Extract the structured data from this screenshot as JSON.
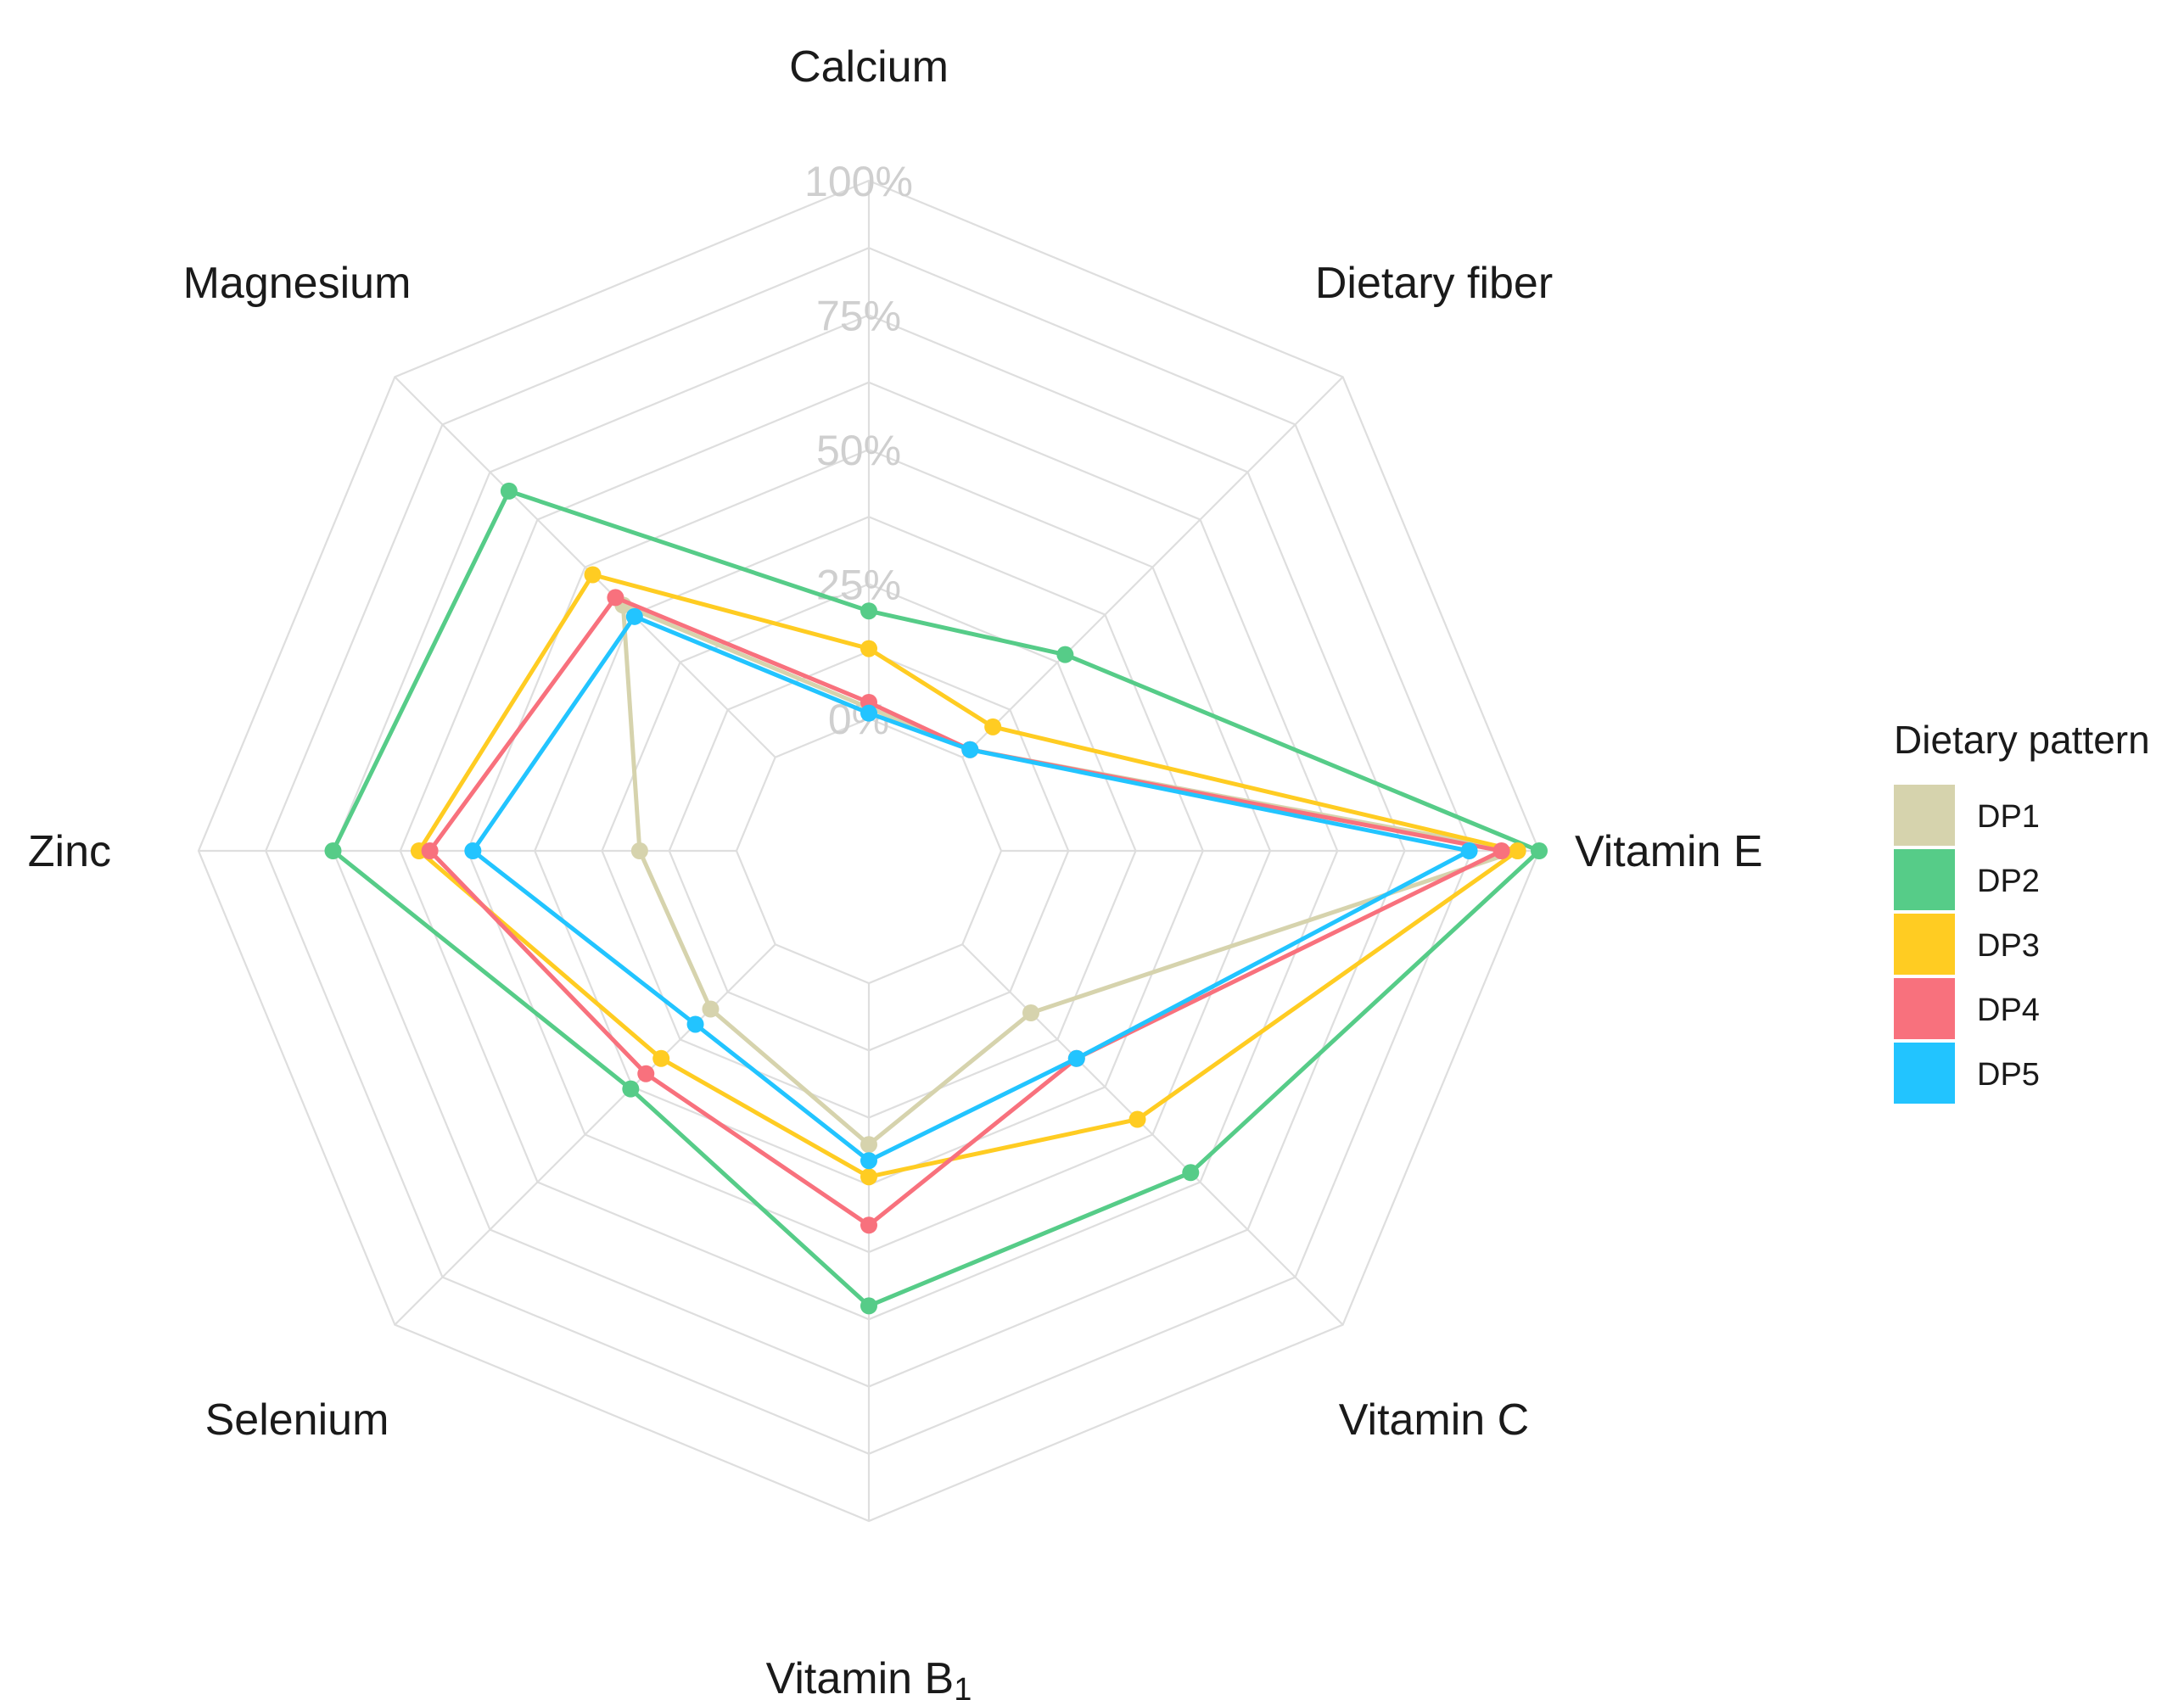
{
  "chart_data": {
    "type": "radar",
    "axes": [
      "Calcium",
      "Dietary fiber",
      "Vitamin E",
      "Vitamin C",
      "Vitamin B",
      "Selenium",
      "Zinc",
      "Magnesium"
    ],
    "axis_subscripts": {
      "Vitamin B": "1"
    },
    "ticks": [
      "0%",
      "25%",
      "50%",
      "75%",
      "100%"
    ],
    "range": [
      0,
      100
    ],
    "legend_title": "Dietary pattern",
    "legend_position": "right",
    "grid": true,
    "series": [
      {
        "name": "DP1",
        "color": "#d6d3ad",
        "values": [
          2,
          2,
          96,
          18,
          30,
          17,
          18,
          40
        ]
      },
      {
        "name": "DP2",
        "color": "#56cc88",
        "values": [
          20,
          27,
          100,
          60,
          60,
          38,
          75,
          70
        ]
      },
      {
        "name": "DP3",
        "color": "#ffcc22",
        "values": [
          13,
          8,
          96,
          46,
          36,
          30,
          59,
          48
        ]
      },
      {
        "name": "DP4",
        "color": "#f8717d",
        "values": [
          3,
          2,
          93,
          30,
          45,
          34,
          57,
          42
        ]
      },
      {
        "name": "DP5",
        "color": "#22c4ff",
        "values": [
          1,
          2,
          87,
          30,
          33,
          21,
          49,
          37
        ]
      }
    ]
  }
}
